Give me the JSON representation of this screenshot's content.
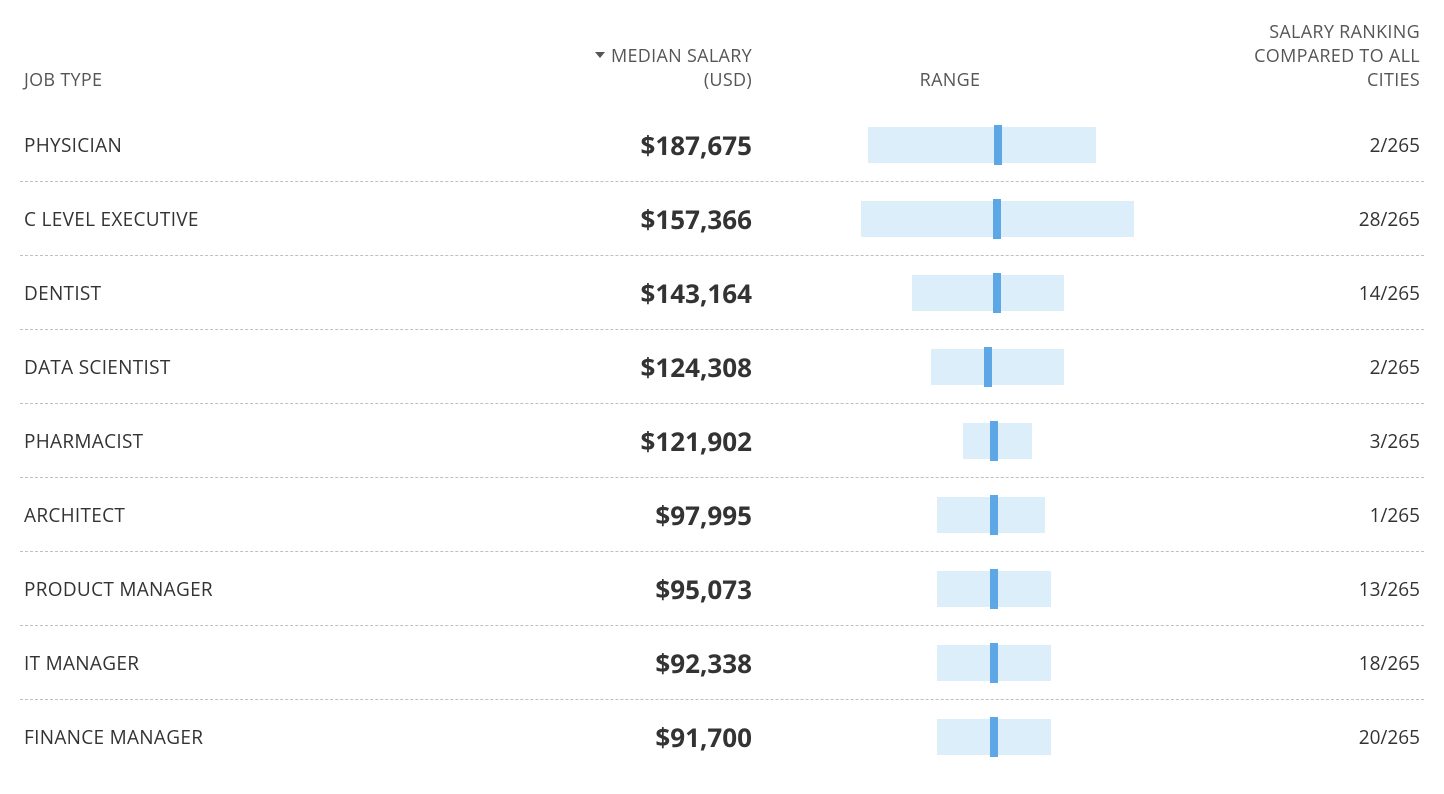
{
  "colors": {
    "text": "#333333",
    "header_text": "#555555",
    "row_divider": "#bfbfbf",
    "range_fill": "#dceefa",
    "range_marker": "#5ea7e6",
    "background": "#ffffff"
  },
  "columns": {
    "job": "JOB TYPE",
    "salary_line1": "MEDIAN SALARY",
    "salary_line2": "(USD)",
    "range": "RANGE",
    "rank_line1": "SALARY RANKING",
    "rank_line2": "COMPARED TO ALL",
    "rank_line3": "CITIES"
  },
  "range_scale": {
    "min": 0,
    "max": 300000
  },
  "rows": [
    {
      "job": "PHYSICIAN",
      "salary": "$187,675",
      "range_low": 85000,
      "range_mid": 187675,
      "range_high": 265000,
      "rank": "2/265"
    },
    {
      "job": "C LEVEL EXECUTIVE",
      "salary": "$157,366",
      "range_low": 80000,
      "range_mid": 187000,
      "range_high": 295000,
      "rank": "28/265"
    },
    {
      "job": "DENTIST",
      "salary": "$143,164",
      "range_low": 120000,
      "range_mid": 187000,
      "range_high": 240000,
      "rank": "14/265"
    },
    {
      "job": "DATA SCIENTIST",
      "salary": "$124,308",
      "range_low": 135000,
      "range_mid": 180000,
      "range_high": 240000,
      "rank": "2/265"
    },
    {
      "job": "PHARMACIST",
      "salary": "$121,902",
      "range_low": 160000,
      "range_mid": 185000,
      "range_high": 215000,
      "rank": "3/265"
    },
    {
      "job": "ARCHITECT",
      "salary": "$97,995",
      "range_low": 140000,
      "range_mid": 185000,
      "range_high": 225000,
      "rank": "1/265"
    },
    {
      "job": "PRODUCT MANAGER",
      "salary": "$95,073",
      "range_low": 140000,
      "range_mid": 185000,
      "range_high": 230000,
      "rank": "13/265"
    },
    {
      "job": "IT MANAGER",
      "salary": "$92,338",
      "range_low": 140000,
      "range_mid": 185000,
      "range_high": 230000,
      "rank": "18/265"
    },
    {
      "job": "FINANCE MANAGER",
      "salary": "$91,700",
      "range_low": 140000,
      "range_mid": 185000,
      "range_high": 230000,
      "rank": "20/265"
    }
  ]
}
